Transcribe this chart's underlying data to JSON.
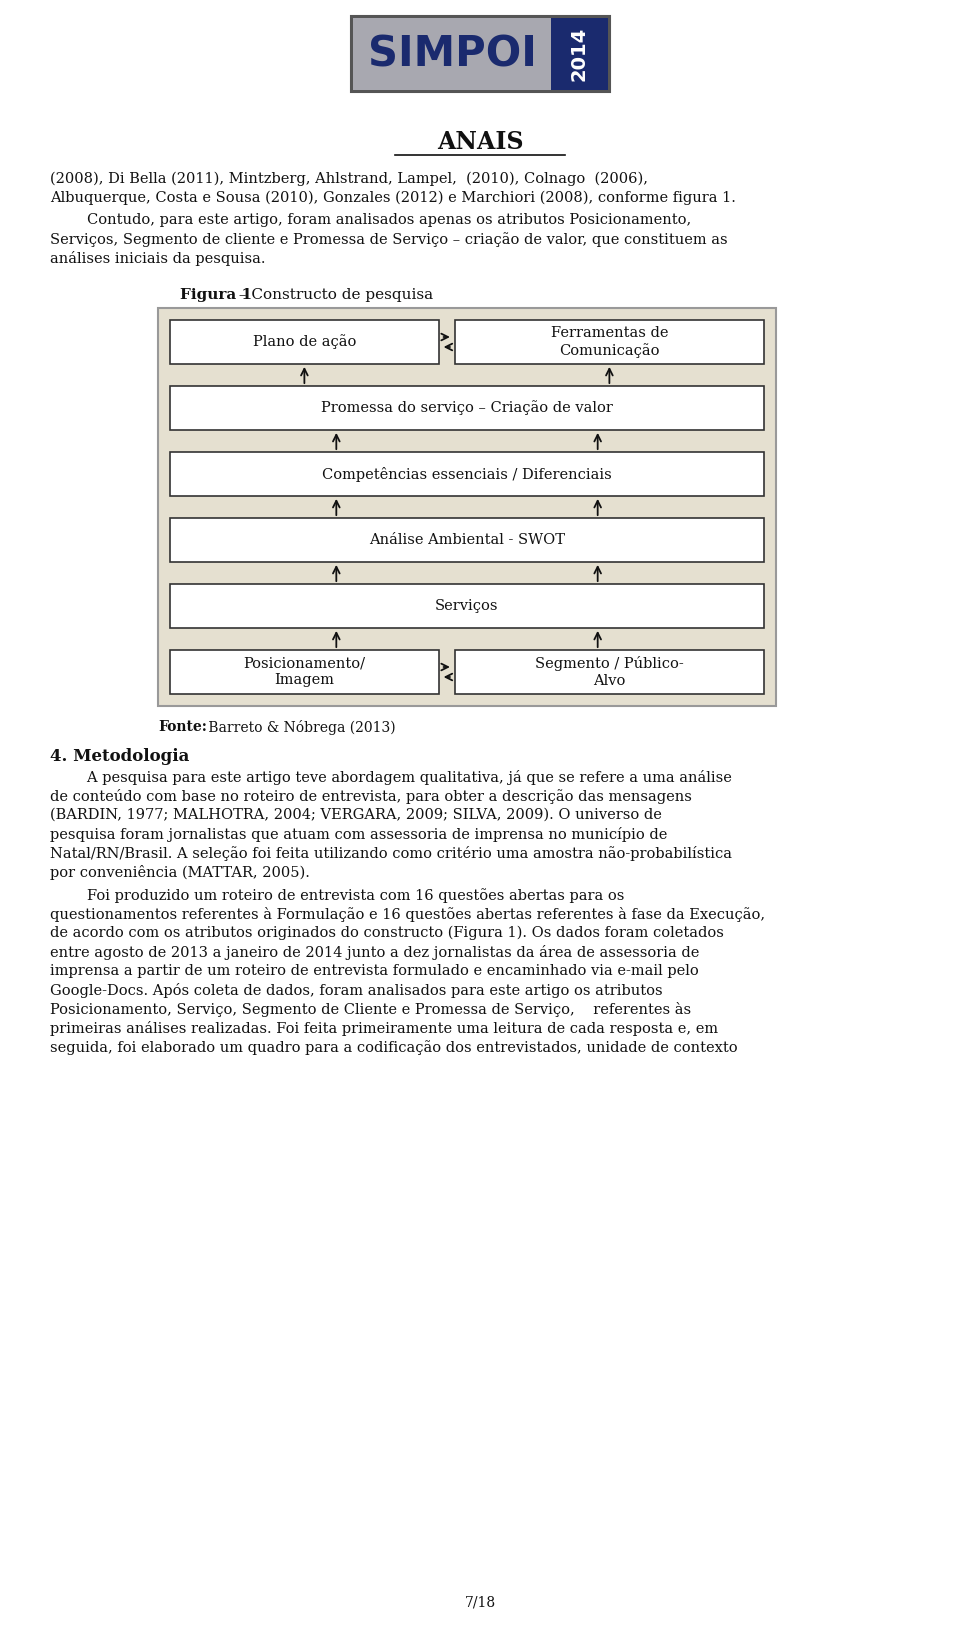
{
  "bg_color": "#ffffff",
  "fig_width": 9.6,
  "fig_height": 16.29,
  "logo_gray": "#a8a8b0",
  "logo_blue": "#1a2a6e",
  "logo_dark": "#1a2a6e",
  "logo_border": "#555555",
  "diagram_bg": "#e5e0d0",
  "box_bg": "#ffffff",
  "box_border": "#333333",
  "text_color": "#111111",
  "box_plano": "Plano de ação",
  "box_ferramentas": "Ferramentas de\nComunicação",
  "box_promessa": "Promessa do serviço – Criação de valor",
  "box_competencias": "Competências essenciais / Diferenciais",
  "box_analise": "Análise Ambiental - SWOT",
  "box_servicos": "Serviços",
  "box_posicionamento": "Posicionamento/\nImagem",
  "box_segmento": "Segmento / Público-\nAlvo",
  "fonte_bold": "Fonte:",
  "fonte_rest": " Barreto & Nóbrega (2013)",
  "page_num": "7/18"
}
